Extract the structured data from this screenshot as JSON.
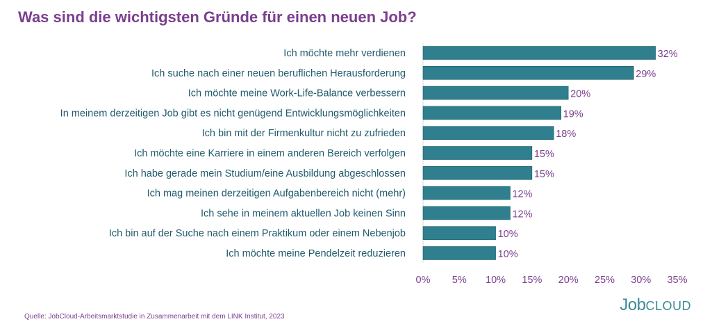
{
  "colors": {
    "title": "#7b3f8f",
    "category_label": "#1f5a6b",
    "bar": "#2f7f8f",
    "value_label": "#7b3f8f",
    "tick_label": "#7b3f8f",
    "source": "#7b3f8f",
    "logo": "#3a8a96"
  },
  "footer": {
    "source": "Quelle: JobCloud-Arbeitsmarktstudie in Zusammenarbeit mit dem LINK Institut, 2023",
    "logo_job": "Job",
    "logo_cloud": "CLOUD"
  },
  "chart_data": {
    "type": "bar",
    "orientation": "horizontal",
    "title": "Was sind die wichtigsten Gründe für einen neuen Job?",
    "xlabel": "",
    "ylabel": "",
    "categories": [
      "Ich möchte mehr verdienen",
      "Ich suche nach einer neuen beruflichen Herausforderung",
      "Ich möchte meine Work-Life-Balance verbessern",
      "In meinem derzeitigen Job gibt es nicht genügend Entwicklungsmöglichkeiten",
      "Ich bin mit der Firmenkultur nicht zu zufrieden",
      "Ich möchte eine Karriere in einem anderen Bereich verfolgen",
      "Ich habe gerade mein Studium/eine Ausbildung abgeschlossen",
      "Ich mag meinen derzeitigen Aufgabenbereich nicht (mehr)",
      "Ich sehe in meinem aktuellen Job keinen Sinn",
      "Ich bin auf der Suche nach einem Praktikum oder einem Nebenjob",
      "Ich möchte meine Pendelzeit reduzieren"
    ],
    "values": [
      32,
      29,
      20,
      19,
      18,
      15,
      15,
      12,
      12,
      10,
      10
    ],
    "value_labels": [
      "32%",
      "29%",
      "20%",
      "19%",
      "18%",
      "15%",
      "15%",
      "12%",
      "12%",
      "10%",
      "10%"
    ],
    "xlim": [
      0,
      35
    ],
    "xticks": [
      0,
      5,
      10,
      15,
      20,
      25,
      30,
      35
    ],
    "xtick_labels": [
      "0%",
      "5%",
      "10%",
      "15%",
      "20%",
      "25%",
      "30%",
      "35%"
    ],
    "grid": false,
    "legend": "none"
  }
}
